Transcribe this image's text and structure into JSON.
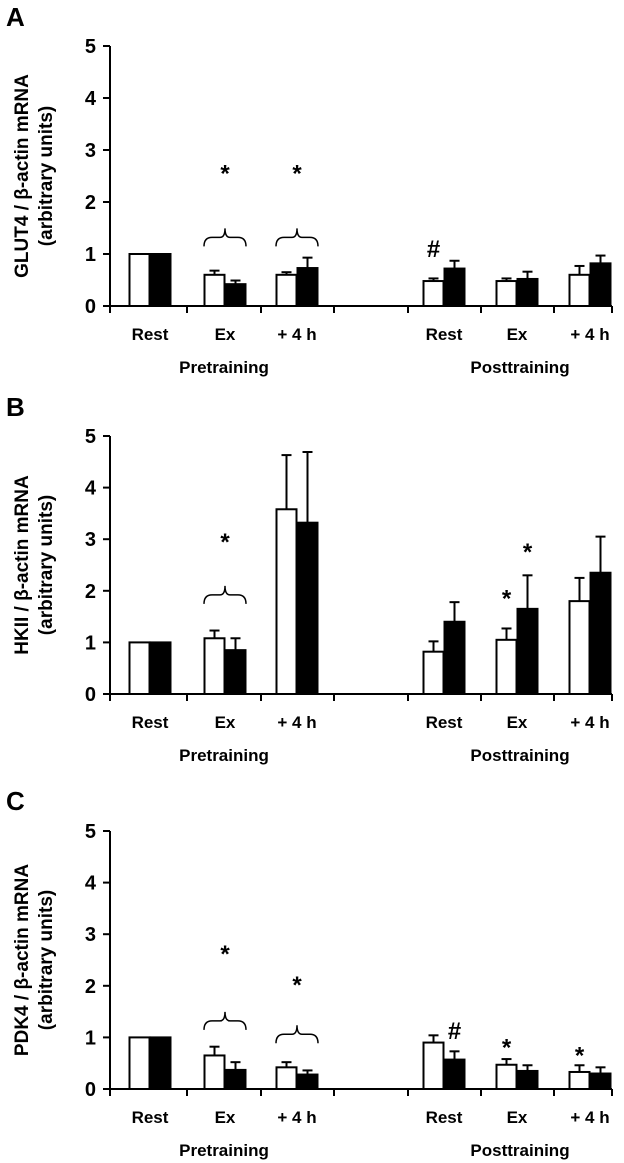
{
  "chart_data": [
    {
      "type": "bar",
      "panel": "A",
      "ylabel_line1": "GLUT4 / β-actin mRNA",
      "ylabel_line2": "(arbitrary units)",
      "ylim": [
        0,
        5
      ],
      "yticks": [
        "0",
        "1",
        "2",
        "3",
        "4",
        "5"
      ],
      "categories": [
        "Rest",
        "Ex",
        "+ 4 h",
        "Rest",
        "Ex",
        "+ 4 h"
      ],
      "groups": [
        "Pretraining",
        "Posttraining"
      ],
      "series": [
        {
          "color": "#ffffff",
          "values": [
            1.0,
            0.6,
            0.6,
            0.48,
            0.48,
            0.6
          ],
          "errors": [
            0.0,
            0.08,
            0.05,
            0.05,
            0.05,
            0.17
          ]
        },
        {
          "color": "#000000",
          "values": [
            1.0,
            0.42,
            0.73,
            0.72,
            0.52,
            0.82
          ],
          "errors": [
            0.0,
            0.07,
            0.2,
            0.15,
            0.14,
            0.15
          ]
        }
      ],
      "annotations": [
        {
          "text": "*",
          "category": 1,
          "series": "both",
          "y": 2.55
        },
        {
          "text": "*",
          "category": 2,
          "series": "both",
          "y": 2.55
        },
        {
          "text": "#",
          "category": 3,
          "series": 0,
          "y": 1.1
        }
      ],
      "braces": [
        {
          "category": 1,
          "y": 1.32
        },
        {
          "category": 2,
          "y": 1.32
        }
      ]
    },
    {
      "type": "bar",
      "panel": "B",
      "ylabel_line1": "HKII / β-actin mRNA",
      "ylabel_line2": "(arbitrary units)",
      "ylim": [
        0,
        5
      ],
      "yticks": [
        "0",
        "1",
        "2",
        "3",
        "4",
        "5"
      ],
      "categories": [
        "Rest",
        "Ex",
        "+ 4 h",
        "Rest",
        "Ex",
        "+ 4 h"
      ],
      "groups": [
        "Pretraining",
        "Posttraining"
      ],
      "series": [
        {
          "color": "#ffffff",
          "values": [
            1.0,
            1.08,
            3.58,
            0.82,
            1.05,
            1.8
          ],
          "errors": [
            0.0,
            0.15,
            1.05,
            0.2,
            0.22,
            0.45
          ]
        },
        {
          "color": "#000000",
          "values": [
            1.0,
            0.85,
            3.32,
            1.4,
            1.65,
            2.35
          ],
          "errors": [
            0.0,
            0.23,
            1.37,
            0.38,
            0.65,
            0.7
          ]
        }
      ],
      "annotations": [
        {
          "text": "*",
          "category": 1,
          "series": "both",
          "y": 2.95
        },
        {
          "text": "*",
          "category": 4,
          "series": 0,
          "y": 1.85
        },
        {
          "text": "*",
          "category": 4,
          "series": 1,
          "y": 2.75
        }
      ],
      "braces": [
        {
          "category": 1,
          "y": 1.92
        }
      ]
    },
    {
      "type": "bar",
      "panel": "C",
      "ylabel_line1": "PDK4 / β-actin mRNA",
      "ylabel_line2": "(arbitrary units)",
      "ylim": [
        0,
        5
      ],
      "yticks": [
        "0",
        "1",
        "2",
        "3",
        "4",
        "5"
      ],
      "categories": [
        "Rest",
        "Ex",
        "+ 4 h",
        "Rest",
        "Ex",
        "+ 4 h"
      ],
      "groups": [
        "Pretraining",
        "Posttraining"
      ],
      "series": [
        {
          "color": "#ffffff",
          "values": [
            1.0,
            0.65,
            0.42,
            0.9,
            0.47,
            0.33
          ],
          "errors": [
            0.0,
            0.17,
            0.1,
            0.14,
            0.11,
            0.13
          ]
        },
        {
          "color": "#000000",
          "values": [
            1.0,
            0.37,
            0.28,
            0.57,
            0.35,
            0.3
          ],
          "errors": [
            0.0,
            0.15,
            0.08,
            0.16,
            0.11,
            0.12
          ]
        }
      ],
      "annotations": [
        {
          "text": "*",
          "category": 1,
          "series": "both",
          "y": 2.62
        },
        {
          "text": "*",
          "category": 2,
          "series": "both",
          "y": 2.02
        },
        {
          "text": "#",
          "category": 3,
          "series": 1,
          "y": 1.12
        },
        {
          "text": "*",
          "category": 4,
          "series": 0,
          "y": 0.8
        },
        {
          "text": "*",
          "category": 5,
          "series": 0,
          "y": 0.65
        }
      ],
      "braces": [
        {
          "category": 1,
          "y": 1.32
        },
        {
          "category": 2,
          "y": 1.06
        }
      ]
    }
  ]
}
